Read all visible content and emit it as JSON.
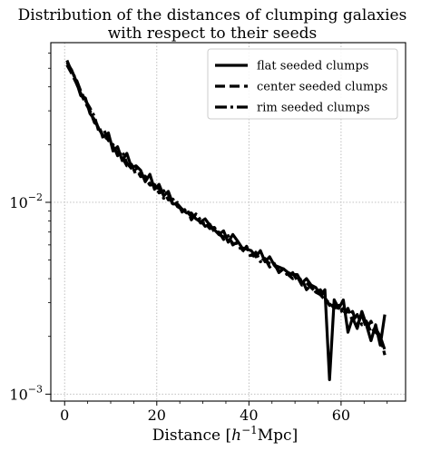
{
  "chart_data": {
    "type": "line",
    "title": [
      "Distribution of the distances of clumping galaxies",
      "with respect to their seeds"
    ],
    "xlabel_main": "Distance [",
    "xlabel_italic": "h",
    "xlabel_sup": "−1",
    "xlabel_unit": "Mpc]",
    "x_ticks": [
      0,
      20,
      40,
      60
    ],
    "x_tick_labels": [
      "0",
      "20",
      "40",
      "60"
    ],
    "y_ticks": [
      0.001,
      0.01
    ],
    "y_tick_base": "10",
    "y_tick_exponents": [
      "−3",
      "−2"
    ],
    "xlim": [
      -3,
      74
    ],
    "ylim": [
      0.00092,
      0.068
    ],
    "yscale": "log",
    "grid": true,
    "legend": "top-right",
    "series": [
      {
        "name": "flat seeded clumps",
        "style": "solid",
        "color": "#000000",
        "x": [
          0.5,
          1.5,
          2.5,
          3.5,
          4.5,
          5.5,
          6.5,
          7.5,
          8.5,
          9.5,
          10.5,
          11.5,
          12.5,
          13.5,
          14.5,
          15.5,
          16.5,
          17.5,
          18.5,
          19.5,
          20.5,
          21.5,
          22.5,
          23.5,
          24.5,
          25.5,
          26.5,
          27.5,
          28.5,
          29.5,
          30.5,
          31.5,
          32.5,
          33.5,
          34.5,
          35.5,
          36.5,
          37.5,
          38.5,
          39.5,
          40.5,
          41.5,
          42.5,
          43.5,
          44.5,
          45.5,
          46.5,
          47.5,
          48.5,
          49.5,
          50.5,
          51.5,
          52.5,
          53.5,
          54.5,
          55.5,
          56.5,
          57.5,
          58.5,
          59.5,
          60.5,
          61.5,
          62.5,
          63.5,
          64.5,
          65.5,
          66.5,
          67.5,
          68.5,
          69.5
        ],
        "y": [
          0.0535,
          0.049,
          0.043,
          0.036,
          0.035,
          0.029,
          0.027,
          0.024,
          0.022,
          0.023,
          0.0185,
          0.0195,
          0.0165,
          0.018,
          0.0152,
          0.0155,
          0.0147,
          0.0128,
          0.014,
          0.0117,
          0.0124,
          0.0108,
          0.0114,
          0.0098,
          0.0098,
          0.0092,
          0.0088,
          0.0088,
          0.0082,
          0.0079,
          0.0082,
          0.0076,
          0.0072,
          0.0068,
          0.0071,
          0.0062,
          0.0068,
          0.0063,
          0.0058,
          0.0057,
          0.0056,
          0.0052,
          0.0056,
          0.0049,
          0.0052,
          0.0047,
          0.0046,
          0.0045,
          0.0043,
          0.0042,
          0.0042,
          0.0038,
          0.004,
          0.0037,
          0.0036,
          0.0033,
          0.0035,
          0.00119,
          0.0031,
          0.0028,
          0.0031,
          0.0021,
          0.0025,
          0.0022,
          0.0027,
          0.0023,
          0.0019,
          0.0023,
          0.0018,
          0.0026
        ]
      },
      {
        "name": "center seeded clumps",
        "style": "dashed",
        "color": "#000000",
        "x": [
          0.5,
          1.5,
          2.5,
          3.5,
          4.5,
          5.5,
          6.5,
          7.5,
          8.5,
          9.5,
          10.5,
          11.5,
          12.5,
          13.5,
          14.5,
          15.5,
          16.5,
          17.5,
          18.5,
          19.5,
          20.5,
          21.5,
          22.5,
          23.5,
          24.5,
          25.5,
          26.5,
          27.5,
          28.5,
          29.5,
          30.5,
          31.5,
          32.5,
          33.5,
          34.5,
          35.5,
          36.5,
          37.5,
          38.5,
          39.5,
          40.5,
          41.5,
          42.5,
          43.5,
          44.5,
          45.5,
          46.5,
          47.5,
          48.5,
          49.5,
          50.5,
          51.5,
          52.5,
          53.5,
          54.5,
          55.5,
          56.5,
          57.5,
          58.5,
          59.5,
          60.5,
          61.5,
          62.5,
          63.5,
          64.5,
          65.5,
          66.5,
          67.5,
          68.5,
          69.5
        ],
        "y": [
          0.052,
          0.047,
          0.042,
          0.037,
          0.033,
          0.03,
          0.026,
          0.025,
          0.021,
          0.022,
          0.0195,
          0.018,
          0.0172,
          0.0155,
          0.0158,
          0.0139,
          0.0142,
          0.0133,
          0.0123,
          0.0124,
          0.0112,
          0.0115,
          0.0103,
          0.0104,
          0.0095,
          0.0092,
          0.009,
          0.0084,
          0.0086,
          0.0078,
          0.0078,
          0.0073,
          0.0074,
          0.0068,
          0.0066,
          0.0066,
          0.0061,
          0.0061,
          0.0057,
          0.0058,
          0.0053,
          0.0054,
          0.0051,
          0.005,
          0.0048,
          0.0047,
          0.0044,
          0.0044,
          0.0042,
          0.004,
          0.0041,
          0.0037,
          0.0038,
          0.0036,
          0.0034,
          0.0035,
          0.0032,
          0.0029,
          0.0031,
          0.0027,
          0.0028,
          0.0026,
          0.0027,
          0.0023,
          0.0026,
          0.0022,
          0.0024,
          0.0021,
          0.002,
          0.0017
        ]
      },
      {
        "name": "rim seeded clumps",
        "style": "dashdot",
        "color": "#000000",
        "x": [
          0.5,
          1.5,
          2.5,
          3.5,
          4.5,
          5.5,
          6.5,
          7.5,
          8.5,
          9.5,
          10.5,
          11.5,
          12.5,
          13.5,
          14.5,
          15.5,
          16.5,
          17.5,
          18.5,
          19.5,
          20.5,
          21.5,
          22.5,
          23.5,
          24.5,
          25.5,
          26.5,
          27.5,
          28.5,
          29.5,
          30.5,
          31.5,
          32.5,
          33.5,
          34.5,
          35.5,
          36.5,
          37.5,
          38.5,
          39.5,
          40.5,
          41.5,
          42.5,
          43.5,
          44.5,
          45.5,
          46.5,
          47.5,
          48.5,
          49.5,
          50.5,
          51.5,
          52.5,
          53.5,
          54.5,
          55.5,
          56.5,
          57.5,
          58.5,
          59.5,
          60.5,
          61.5,
          62.5,
          63.5,
          64.5,
          65.5,
          66.5,
          67.5,
          68.5,
          69.5
        ],
        "y": [
          0.055,
          0.048,
          0.044,
          0.038,
          0.034,
          0.031,
          0.028,
          0.023,
          0.024,
          0.021,
          0.02,
          0.0175,
          0.0185,
          0.016,
          0.015,
          0.015,
          0.0136,
          0.0137,
          0.0125,
          0.012,
          0.0118,
          0.0105,
          0.011,
          0.0097,
          0.01,
          0.0089,
          0.0093,
          0.0081,
          0.0087,
          0.0081,
          0.0075,
          0.0077,
          0.007,
          0.007,
          0.0064,
          0.0067,
          0.006,
          0.0062,
          0.0055,
          0.0059,
          0.0051,
          0.0055,
          0.0049,
          0.0051,
          0.0046,
          0.0048,
          0.0043,
          0.0045,
          0.0041,
          0.0043,
          0.0039,
          0.004,
          0.0035,
          0.0037,
          0.0034,
          0.0033,
          0.0031,
          0.003,
          0.0028,
          0.0029,
          0.0026,
          0.0028,
          0.0024,
          0.0026,
          0.0023,
          0.0024,
          0.0021,
          0.0022,
          0.002,
          0.0016
        ]
      }
    ]
  }
}
